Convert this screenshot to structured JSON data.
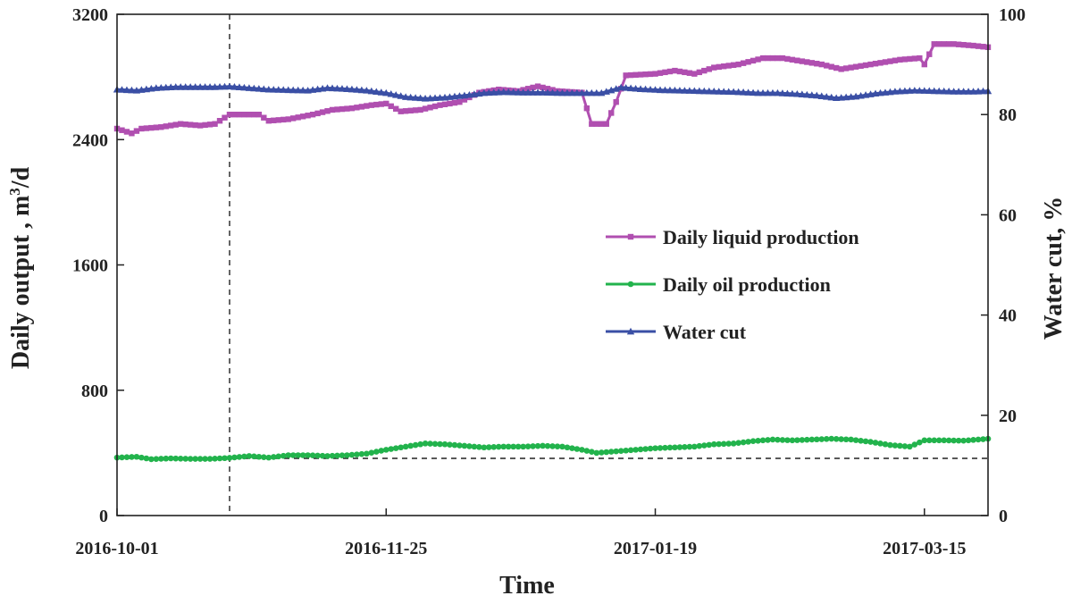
{
  "chart_data": {
    "type": "line",
    "xlabel": "Time",
    "ylabel_left": "Daily output  , m³/d",
    "ylabel_right": "Water cut,  %",
    "x_ticks": [
      "2016-10-01",
      "2016-11-25",
      "2017-01-19",
      "2017-03-15"
    ],
    "x_range": [
      "2016-10-01",
      "2017-03-28"
    ],
    "ylim_left": [
      0,
      3200
    ],
    "yticks_left": [
      "0",
      "800",
      "1600",
      "2400",
      "3200"
    ],
    "ylim_right": [
      0,
      100
    ],
    "yticks_right": [
      "0",
      "20",
      "40",
      "60",
      "80",
      "100"
    ],
    "grid": false,
    "legend_position": "right-center",
    "reference_lines": {
      "vertical_date": "2016-10-24",
      "horizontal_left_value": 365
    },
    "series": [
      {
        "name": "Daily liquid production",
        "axis": "left",
        "color": "#b04fb0",
        "marker": "square",
        "points": [
          [
            "2016-10-01",
            2470
          ],
          [
            "2016-10-04",
            2440
          ],
          [
            "2016-10-06",
            2470
          ],
          [
            "2016-10-10",
            2480
          ],
          [
            "2016-10-14",
            2500
          ],
          [
            "2016-10-18",
            2490
          ],
          [
            "2016-10-21",
            2500
          ],
          [
            "2016-10-24",
            2560
          ],
          [
            "2016-10-30",
            2560
          ],
          [
            "2016-11-01",
            2520
          ],
          [
            "2016-11-05",
            2530
          ],
          [
            "2016-11-10",
            2560
          ],
          [
            "2016-11-14",
            2590
          ],
          [
            "2016-11-18",
            2600
          ],
          [
            "2016-11-22",
            2620
          ],
          [
            "2016-11-25",
            2630
          ],
          [
            "2016-11-28",
            2580
          ],
          [
            "2016-12-02",
            2590
          ],
          [
            "2016-12-06",
            2620
          ],
          [
            "2016-12-10",
            2640
          ],
          [
            "2016-12-14",
            2700
          ],
          [
            "2016-12-18",
            2720
          ],
          [
            "2016-12-22",
            2710
          ],
          [
            "2016-12-26",
            2740
          ],
          [
            "2016-12-30",
            2710
          ],
          [
            "2017-01-04",
            2700
          ],
          [
            "2017-01-06",
            2500
          ],
          [
            "2017-01-09",
            2500
          ],
          [
            "2017-01-11",
            2640
          ],
          [
            "2017-01-13",
            2810
          ],
          [
            "2017-01-19",
            2820
          ],
          [
            "2017-01-23",
            2840
          ],
          [
            "2017-01-27",
            2820
          ],
          [
            "2017-01-31",
            2860
          ],
          [
            "2017-02-05",
            2880
          ],
          [
            "2017-02-10",
            2920
          ],
          [
            "2017-02-14",
            2920
          ],
          [
            "2017-02-18",
            2900
          ],
          [
            "2017-02-22",
            2880
          ],
          [
            "2017-02-26",
            2850
          ],
          [
            "2017-03-02",
            2870
          ],
          [
            "2017-03-06",
            2890
          ],
          [
            "2017-03-10",
            2910
          ],
          [
            "2017-03-14",
            2920
          ],
          [
            "2017-03-15",
            2880
          ],
          [
            "2017-03-17",
            3010
          ],
          [
            "2017-03-21",
            3010
          ],
          [
            "2017-03-25",
            3000
          ],
          [
            "2017-03-28",
            2990
          ]
        ]
      },
      {
        "name": "Daily oil production",
        "axis": "left",
        "color": "#22b34c",
        "marker": "circle",
        "points": [
          [
            "2016-10-01",
            370
          ],
          [
            "2016-10-05",
            375
          ],
          [
            "2016-10-08",
            360
          ],
          [
            "2016-10-12",
            365
          ],
          [
            "2016-10-16",
            362
          ],
          [
            "2016-10-20",
            362
          ],
          [
            "2016-10-24",
            368
          ],
          [
            "2016-10-28",
            380
          ],
          [
            "2016-11-01",
            370
          ],
          [
            "2016-11-05",
            385
          ],
          [
            "2016-11-09",
            385
          ],
          [
            "2016-11-13",
            380
          ],
          [
            "2016-11-17",
            385
          ],
          [
            "2016-11-21",
            395
          ],
          [
            "2016-11-25",
            420
          ],
          [
            "2016-11-29",
            440
          ],
          [
            "2016-12-03",
            460
          ],
          [
            "2016-12-07",
            455
          ],
          [
            "2016-12-11",
            445
          ],
          [
            "2016-12-15",
            435
          ],
          [
            "2016-12-19",
            440
          ],
          [
            "2016-12-23",
            440
          ],
          [
            "2016-12-27",
            445
          ],
          [
            "2016-12-31",
            440
          ],
          [
            "2017-01-04",
            420
          ],
          [
            "2017-01-07",
            400
          ],
          [
            "2017-01-11",
            410
          ],
          [
            "2017-01-15",
            420
          ],
          [
            "2017-01-19",
            430
          ],
          [
            "2017-01-23",
            435
          ],
          [
            "2017-01-27",
            440
          ],
          [
            "2017-01-31",
            455
          ],
          [
            "2017-02-04",
            460
          ],
          [
            "2017-02-08",
            475
          ],
          [
            "2017-02-12",
            485
          ],
          [
            "2017-02-16",
            480
          ],
          [
            "2017-02-20",
            485
          ],
          [
            "2017-02-24",
            490
          ],
          [
            "2017-02-28",
            485
          ],
          [
            "2017-03-04",
            470
          ],
          [
            "2017-03-08",
            450
          ],
          [
            "2017-03-12",
            440
          ],
          [
            "2017-03-15",
            480
          ],
          [
            "2017-03-19",
            480
          ],
          [
            "2017-03-23",
            478
          ],
          [
            "2017-03-28",
            490
          ]
        ]
      },
      {
        "name": "Water cut",
        "axis": "right",
        "color": "#3a4fa5",
        "marker": "triangle",
        "points": [
          [
            "2016-10-01",
            85
          ],
          [
            "2016-10-05",
            84.8
          ],
          [
            "2016-10-09",
            85.3
          ],
          [
            "2016-10-13",
            85.5
          ],
          [
            "2016-10-17",
            85.5
          ],
          [
            "2016-10-21",
            85.5
          ],
          [
            "2016-10-24",
            85.6
          ],
          [
            "2016-10-28",
            85.3
          ],
          [
            "2016-11-01",
            85.0
          ],
          [
            "2016-11-05",
            84.9
          ],
          [
            "2016-11-09",
            84.8
          ],
          [
            "2016-11-13",
            85.3
          ],
          [
            "2016-11-17",
            85.1
          ],
          [
            "2016-11-21",
            84.8
          ],
          [
            "2016-11-25",
            84.3
          ],
          [
            "2016-11-29",
            83.5
          ],
          [
            "2016-12-03",
            83.2
          ],
          [
            "2016-12-07",
            83.4
          ],
          [
            "2016-12-11",
            83.8
          ],
          [
            "2016-12-15",
            84.3
          ],
          [
            "2016-12-19",
            84.5
          ],
          [
            "2016-12-23",
            84.4
          ],
          [
            "2016-12-27",
            84.4
          ],
          [
            "2016-12-31",
            84.3
          ],
          [
            "2017-01-04",
            84.3
          ],
          [
            "2017-01-08",
            84.3
          ],
          [
            "2017-01-12",
            85.4
          ],
          [
            "2017-01-16",
            85.1
          ],
          [
            "2017-01-20",
            84.9
          ],
          [
            "2017-01-24",
            84.8
          ],
          [
            "2017-01-28",
            84.7
          ],
          [
            "2017-02-01",
            84.6
          ],
          [
            "2017-02-05",
            84.5
          ],
          [
            "2017-02-09",
            84.3
          ],
          [
            "2017-02-13",
            84.3
          ],
          [
            "2017-02-17",
            84.1
          ],
          [
            "2017-02-21",
            83.8
          ],
          [
            "2017-02-25",
            83.3
          ],
          [
            "2017-03-01",
            83.6
          ],
          [
            "2017-03-05",
            84.2
          ],
          [
            "2017-03-09",
            84.6
          ],
          [
            "2017-03-13",
            84.8
          ],
          [
            "2017-03-17",
            84.7
          ],
          [
            "2017-03-21",
            84.6
          ],
          [
            "2017-03-25",
            84.6
          ],
          [
            "2017-03-28",
            84.7
          ]
        ]
      }
    ]
  }
}
